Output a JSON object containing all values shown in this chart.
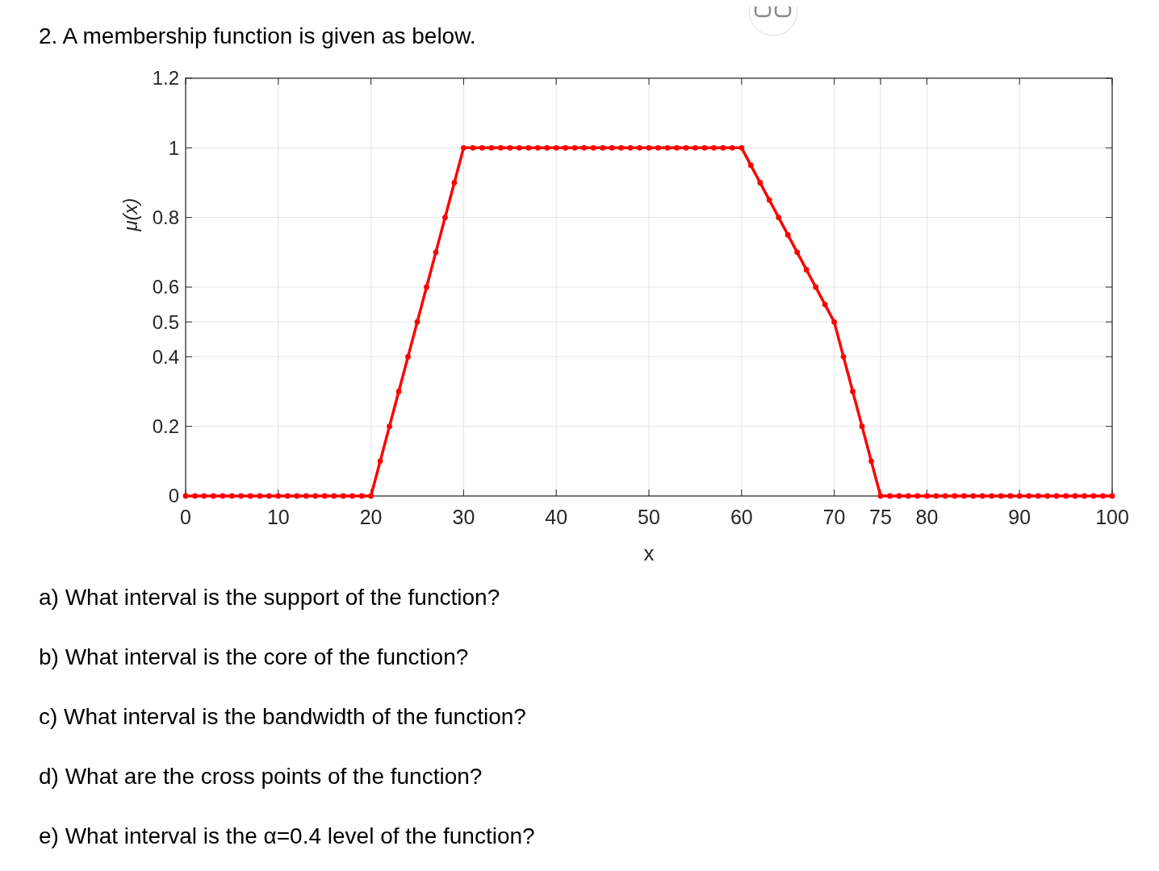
{
  "chart_data": {
    "type": "line",
    "title": "2. A membership function is given as below.",
    "xlabel": "x",
    "ylabel": "μ(x)",
    "x": [
      0,
      1,
      2,
      3,
      4,
      5,
      6,
      7,
      8,
      9,
      10,
      11,
      12,
      13,
      14,
      15,
      16,
      17,
      18,
      19,
      20,
      21,
      22,
      23,
      24,
      25,
      26,
      27,
      28,
      29,
      30,
      31,
      32,
      33,
      34,
      35,
      36,
      37,
      38,
      39,
      40,
      41,
      42,
      43,
      44,
      45,
      46,
      47,
      48,
      49,
      50,
      51,
      52,
      53,
      54,
      55,
      56,
      57,
      58,
      59,
      60,
      61,
      62,
      63,
      64,
      65,
      66,
      67,
      68,
      69,
      70,
      71,
      72,
      73,
      74,
      75,
      76,
      77,
      78,
      79,
      80,
      81,
      82,
      83,
      84,
      85,
      86,
      87,
      88,
      89,
      90,
      91,
      92,
      93,
      94,
      95,
      96,
      97,
      98,
      99,
      100
    ],
    "series": [
      {
        "color": "#ff0000",
        "values": [
          0,
          0,
          0,
          0,
          0,
          0,
          0,
          0,
          0,
          0,
          0,
          0,
          0,
          0,
          0,
          0,
          0,
          0,
          0,
          0,
          0,
          0.1,
          0.2,
          0.3,
          0.4,
          0.5,
          0.6,
          0.7,
          0.8,
          0.9,
          1,
          1,
          1,
          1,
          1,
          1,
          1,
          1,
          1,
          1,
          1,
          1,
          1,
          1,
          1,
          1,
          1,
          1,
          1,
          1,
          1,
          1,
          1,
          1,
          1,
          1,
          1,
          1,
          1,
          1,
          1,
          0.95,
          0.9,
          0.85,
          0.8,
          0.75,
          0.7,
          0.65,
          0.6,
          0.55,
          0.5,
          0.4,
          0.3,
          0.2,
          0.1,
          0,
          0,
          0,
          0,
          0,
          0,
          0,
          0,
          0,
          0,
          0,
          0,
          0,
          0,
          0,
          0,
          0,
          0,
          0,
          0,
          0,
          0,
          0,
          0,
          0,
          0
        ]
      }
    ],
    "xlim": [
      0,
      100
    ],
    "ylim": [
      0,
      1.2
    ],
    "xticks": [
      0,
      10,
      20,
      30,
      40,
      50,
      60,
      70,
      75,
      80,
      90,
      100
    ],
    "yticks": [
      0,
      0.2,
      0.4,
      0.5,
      0.6,
      0.8,
      1,
      1.2
    ],
    "grid": true,
    "marker": "circle",
    "line_style": "solid",
    "annotations": [
      "a)  What interval is the support of the function?",
      "b)  What interval is the core of the function?",
      "c)  What interval is the bandwidth of the function?",
      "d)  What are the cross points of the function?",
      "e)  What interval is the α=0.4 level of the function?"
    ]
  }
}
